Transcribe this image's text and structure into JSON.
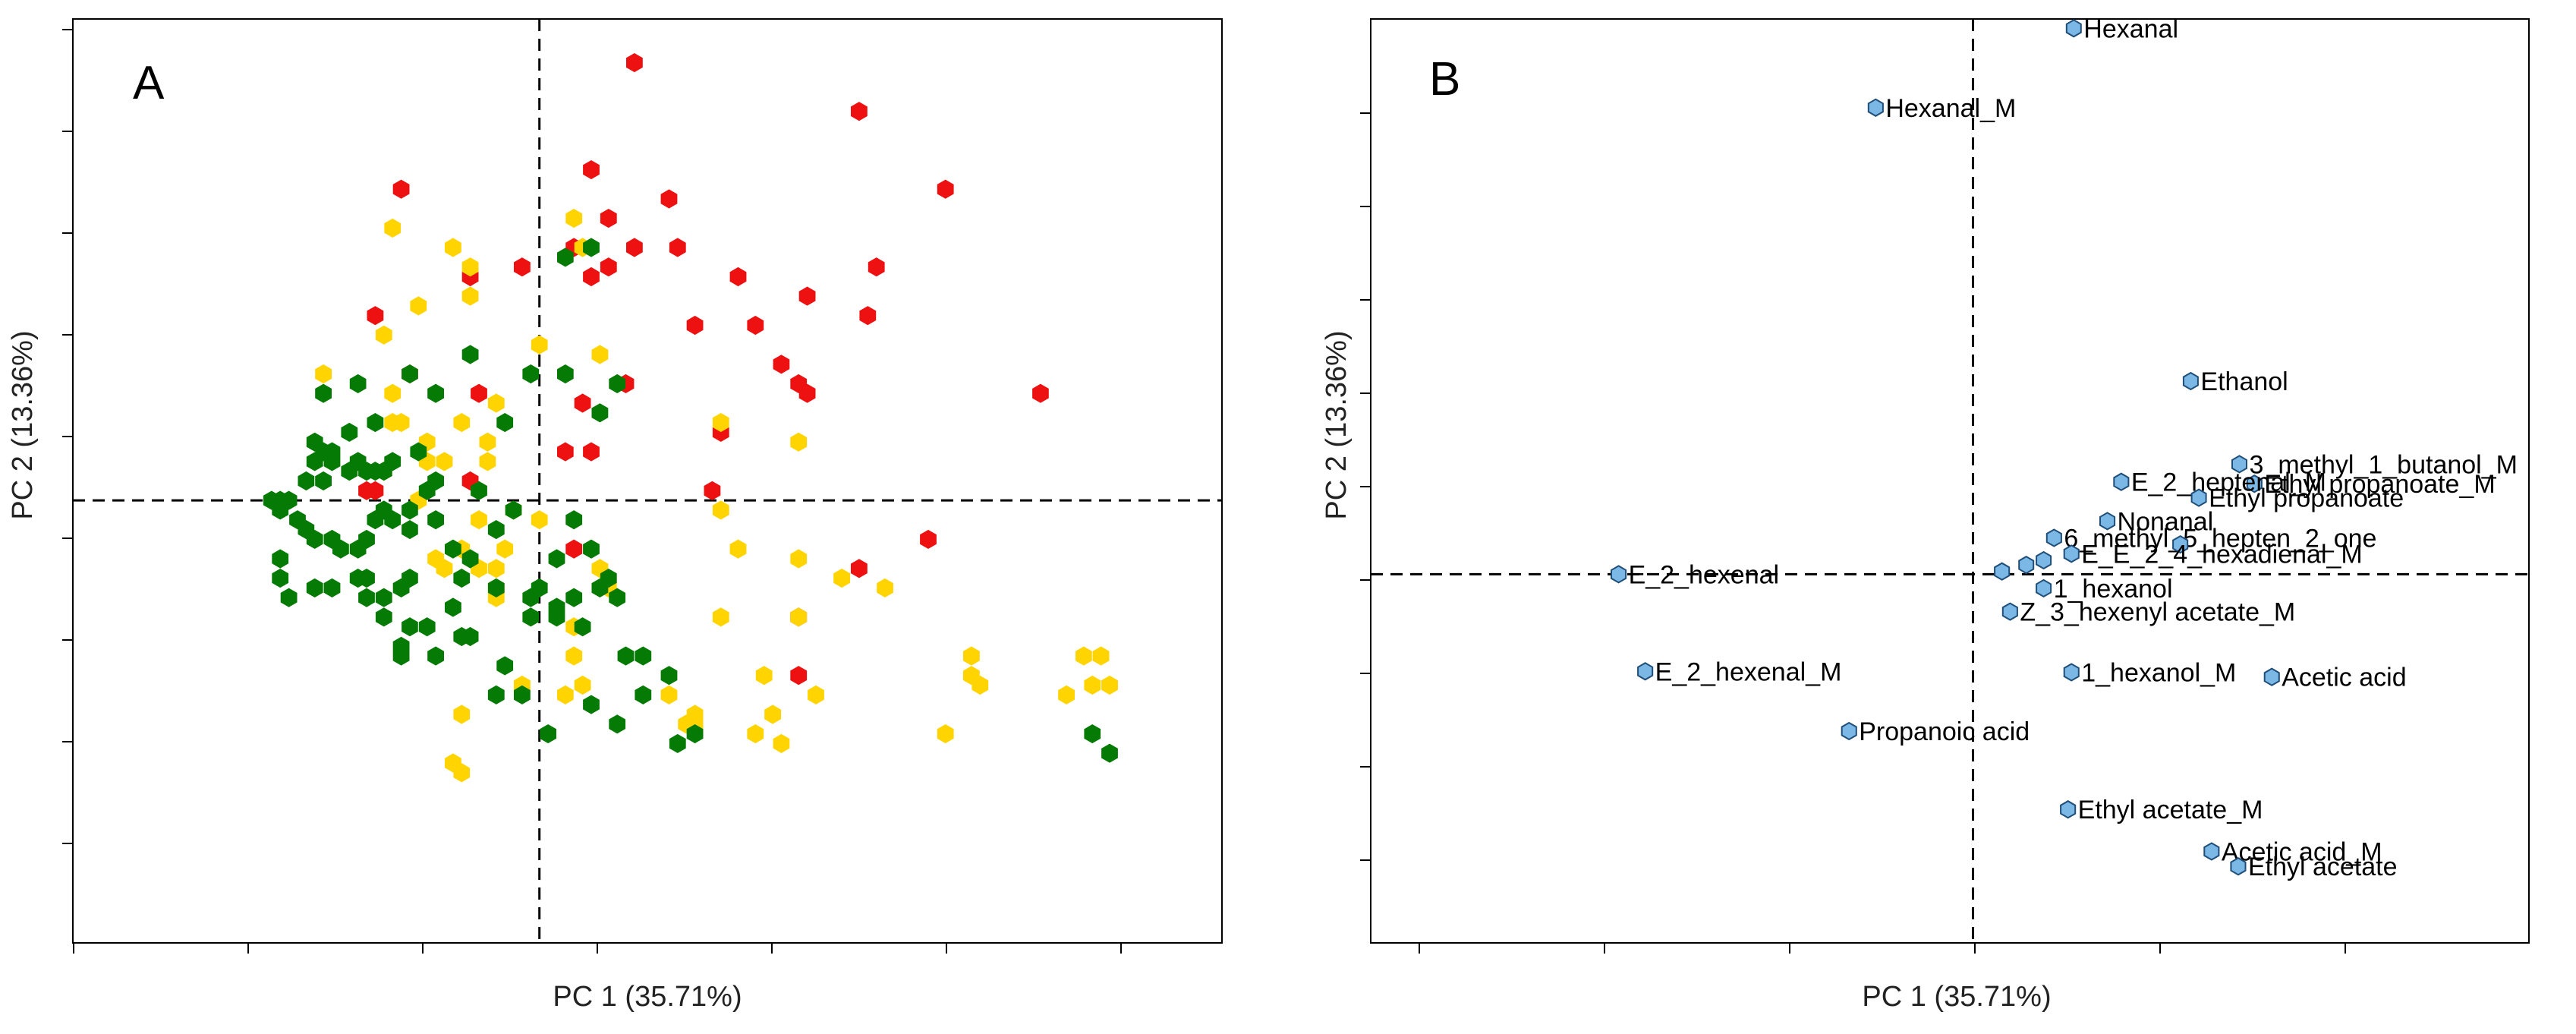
{
  "chart_data": [
    {
      "type": "scatter",
      "panel_label": "A",
      "xlabel": "PC 1 (35.71%)",
      "ylabel": "PC 2 (13.36%)",
      "xlim": [
        -5.4,
        7.9
      ],
      "ylim": [
        -4.55,
        4.95
      ],
      "zero_lines": "dashed",
      "colors": {
        "red": "#ee1111",
        "yellow": "#ffd400",
        "green": "#057a05"
      },
      "series": [
        {
          "color": "red",
          "values": [
            [
              1.1,
              4.5
            ],
            [
              3.7,
              4.0
            ],
            [
              4.7,
              3.2
            ],
            [
              0.6,
              3.4
            ],
            [
              1.5,
              3.1
            ],
            [
              -1.6,
              3.2
            ],
            [
              0.8,
              2.9
            ],
            [
              1.1,
              2.6
            ],
            [
              1.6,
              2.6
            ],
            [
              2.3,
              2.3
            ],
            [
              3.9,
              2.4
            ],
            [
              3.1,
              2.1
            ],
            [
              -0.2,
              2.4
            ],
            [
              0.4,
              2.6
            ],
            [
              0.6,
              2.3
            ],
            [
              0.8,
              2.4
            ],
            [
              -1.9,
              1.9
            ],
            [
              -0.8,
              2.3
            ],
            [
              1.8,
              1.8
            ],
            [
              2.5,
              1.8
            ],
            [
              2.8,
              1.4
            ],
            [
              3.0,
              1.2
            ],
            [
              3.8,
              1.9
            ],
            [
              -1.5,
              1.3
            ],
            [
              -0.7,
              1.1
            ],
            [
              0.5,
              1.0
            ],
            [
              1.0,
              1.2
            ],
            [
              3.1,
              1.1
            ],
            [
              5.8,
              1.1
            ],
            [
              2.1,
              0.7
            ],
            [
              2.0,
              0.1
            ],
            [
              0.3,
              0.5
            ],
            [
              0.6,
              0.5
            ],
            [
              -0.8,
              0.2
            ],
            [
              -2.0,
              0.1
            ],
            [
              -1.9,
              0.1
            ],
            [
              3.0,
              -1.2
            ],
            [
              4.5,
              -0.4
            ],
            [
              3.7,
              -0.7
            ],
            [
              0.4,
              -0.5
            ],
            [
              3.0,
              -1.8
            ]
          ]
        },
        {
          "color": "yellow",
          "values": [
            [
              -1.7,
              2.8
            ],
            [
              -1.0,
              2.6
            ],
            [
              0.4,
              2.9
            ],
            [
              0.5,
              2.6
            ],
            [
              -0.8,
              2.4
            ],
            [
              -1.4,
              2.0
            ],
            [
              -0.8,
              2.1
            ],
            [
              -1.8,
              1.7
            ],
            [
              -2.5,
              1.3
            ],
            [
              -1.7,
              1.1
            ],
            [
              -1.6,
              0.8
            ],
            [
              -1.7,
              0.8
            ],
            [
              -0.5,
              1.0
            ],
            [
              0.0,
              1.6
            ],
            [
              0.7,
              1.5
            ],
            [
              -0.6,
              0.6
            ],
            [
              -1.3,
              0.4
            ],
            [
              -1.1,
              0.4
            ],
            [
              -0.6,
              0.4
            ],
            [
              -1.3,
              0.6
            ],
            [
              -0.9,
              0.8
            ],
            [
              -1.8,
              0.3
            ],
            [
              2.1,
              0.8
            ],
            [
              3.0,
              0.6
            ],
            [
              -1.4,
              0.0
            ],
            [
              -0.7,
              -0.2
            ],
            [
              -0.3,
              -0.1
            ],
            [
              0.0,
              -0.2
            ],
            [
              -0.9,
              -0.5
            ],
            [
              -0.4,
              -0.5
            ],
            [
              -1.2,
              -0.6
            ],
            [
              -0.5,
              -0.9
            ],
            [
              -0.7,
              -0.7
            ],
            [
              0.7,
              -0.7
            ],
            [
              0.8,
              -0.9
            ],
            [
              -1.1,
              -0.7
            ],
            [
              -0.5,
              -1.0
            ],
            [
              2.1,
              -0.1
            ],
            [
              2.3,
              -0.5
            ],
            [
              3.0,
              -0.6
            ],
            [
              3.5,
              -0.8
            ],
            [
              4.0,
              -0.9
            ],
            [
              3.0,
              -1.2
            ],
            [
              2.1,
              -1.2
            ],
            [
              0.4,
              -1.3
            ],
            [
              0.4,
              -1.6
            ],
            [
              0.5,
              -1.9
            ],
            [
              -0.2,
              -1.9
            ],
            [
              0.3,
              -2.0
            ],
            [
              1.5,
              -2.0
            ],
            [
              1.8,
              -2.2
            ],
            [
              2.6,
              -1.8
            ],
            [
              2.7,
              -2.2
            ],
            [
              3.2,
              -2.0
            ],
            [
              4.7,
              -2.4
            ],
            [
              1.8,
              -2.3
            ],
            [
              1.7,
              -2.3
            ],
            [
              2.5,
              -2.4
            ],
            [
              2.8,
              -2.5
            ],
            [
              5.0,
              -1.6
            ],
            [
              5.0,
              -1.8
            ],
            [
              5.1,
              -1.9
            ],
            [
              6.3,
              -1.6
            ],
            [
              6.5,
              -1.6
            ],
            [
              6.4,
              -1.9
            ],
            [
              6.6,
              -1.9
            ],
            [
              6.1,
              -2.0
            ],
            [
              -1.0,
              -2.7
            ],
            [
              -0.9,
              -2.8
            ],
            [
              -0.9,
              -2.2
            ],
            [
              -0.5,
              -0.7
            ]
          ]
        },
        {
          "color": "green",
          "values": [
            [
              0.3,
              2.5
            ],
            [
              0.6,
              2.6
            ],
            [
              -0.8,
              1.5
            ],
            [
              -1.2,
              1.1
            ],
            [
              -1.5,
              1.3
            ],
            [
              -1.7,
              0.4
            ],
            [
              -1.8,
              0.3
            ],
            [
              -1.9,
              0.3
            ],
            [
              -2.0,
              0.3
            ],
            [
              -2.1,
              0.4
            ],
            [
              -2.2,
              0.3
            ],
            [
              -2.4,
              0.5
            ],
            [
              -2.4,
              0.4
            ],
            [
              -2.5,
              0.5
            ],
            [
              -2.6,
              0.6
            ],
            [
              -2.5,
              0.2
            ],
            [
              -2.7,
              0.2
            ],
            [
              -2.9,
              0.0
            ],
            [
              -3.0,
              0.0
            ],
            [
              -3.1,
              0.0
            ],
            [
              -3.0,
              -0.1
            ],
            [
              -2.8,
              -0.2
            ],
            [
              -2.7,
              -0.3
            ],
            [
              -2.6,
              -0.4
            ],
            [
              -2.4,
              -0.4
            ],
            [
              -2.3,
              -0.5
            ],
            [
              -2.1,
              -0.5
            ],
            [
              -2.0,
              -0.4
            ],
            [
              -1.9,
              -0.2
            ],
            [
              -1.7,
              -0.2
            ],
            [
              -1.5,
              -0.1
            ],
            [
              -1.3,
              0.1
            ],
            [
              -1.2,
              -0.2
            ],
            [
              -1.0,
              -0.5
            ],
            [
              -0.8,
              -0.6
            ],
            [
              -0.7,
              0.1
            ],
            [
              -0.5,
              -0.3
            ],
            [
              -0.3,
              -0.1
            ],
            [
              0.2,
              -0.6
            ],
            [
              0.4,
              -0.2
            ],
            [
              0.6,
              -0.5
            ],
            [
              0.7,
              -0.9
            ],
            [
              0.4,
              -1.0
            ],
            [
              0.5,
              -1.3
            ],
            [
              0.9,
              -1.0
            ],
            [
              1.0,
              -1.6
            ],
            [
              1.2,
              -1.6
            ],
            [
              0.6,
              -2.1
            ],
            [
              0.9,
              -2.3
            ],
            [
              -0.1,
              -1.0
            ],
            [
              -0.1,
              -1.2
            ],
            [
              -0.2,
              -2.0
            ],
            [
              -0.5,
              -2.0
            ],
            [
              -0.4,
              -1.7
            ],
            [
              -0.9,
              -1.4
            ],
            [
              -1.2,
              -1.6
            ],
            [
              -1.3,
              -1.3
            ],
            [
              -1.6,
              -1.5
            ],
            [
              -1.6,
              -1.6
            ],
            [
              -1.5,
              -1.3
            ],
            [
              -1.8,
              -1.2
            ],
            [
              -1.8,
              -1.0
            ],
            [
              -1.6,
              -0.9
            ],
            [
              -1.5,
              -0.8
            ],
            [
              -2.0,
              -1.0
            ],
            [
              -2.0,
              -0.8
            ],
            [
              -2.1,
              -0.8
            ],
            [
              -2.4,
              -0.9
            ],
            [
              -2.6,
              -0.9
            ],
            [
              -2.9,
              -1.0
            ],
            [
              -3.0,
              -0.8
            ],
            [
              -3.0,
              -0.6
            ],
            [
              -0.9,
              -0.8
            ],
            [
              -1.0,
              -1.1
            ],
            [
              -0.8,
              -1.4
            ],
            [
              -0.5,
              -0.9
            ],
            [
              0.0,
              -0.9
            ],
            [
              0.2,
              -1.1
            ],
            [
              0.2,
              -1.2
            ],
            [
              0.8,
              -0.8
            ],
            [
              1.2,
              -2.0
            ],
            [
              1.6,
              -2.5
            ],
            [
              1.8,
              -2.4
            ],
            [
              1.5,
              -1.8
            ],
            [
              0.1,
              -2.4
            ],
            [
              -1.9,
              0.8
            ],
            [
              -2.1,
              1.2
            ],
            [
              -2.5,
              1.1
            ],
            [
              -2.6,
              0.4
            ],
            [
              -2.2,
              0.7
            ],
            [
              -0.4,
              0.8
            ],
            [
              -0.1,
              1.3
            ],
            [
              0.3,
              1.3
            ],
            [
              0.7,
              0.9
            ],
            [
              0.9,
              1.2
            ],
            [
              -1.2,
              0.2
            ],
            [
              -1.5,
              -0.3
            ],
            [
              6.4,
              -2.4
            ],
            [
              6.6,
              -2.6
            ],
            [
              -1.8,
              -0.1
            ],
            [
              -1.4,
              0.5
            ]
          ]
        }
      ]
    },
    {
      "type": "scatter",
      "panel_label": "B",
      "xlabel": "PC 1 (35.71%)",
      "ylabel": "PC 2 (13.36%)",
      "xlim": [
        -0.52,
        0.48
      ],
      "ylim": [
        -0.395,
        0.595
      ],
      "zero_lines": "dashed",
      "point_color": "#7cb8e6",
      "points": [
        {
          "label": "Hexanal",
          "x": 0.087,
          "y": 0.585
        },
        {
          "label": "Hexanal_M",
          "x": -0.084,
          "y": 0.5
        },
        {
          "label": "Ethanol",
          "x": 0.188,
          "y": 0.207
        },
        {
          "label": "3_methyl_1_butanol_M",
          "x": 0.23,
          "y": 0.118
        },
        {
          "label": "Ethyl propanoate_M",
          "x": 0.243,
          "y": 0.097
        },
        {
          "label": "E_2_heptenal_M",
          "x": 0.128,
          "y": 0.099
        },
        {
          "label": "Ethyl propanoate",
          "x": 0.195,
          "y": 0.082
        },
        {
          "label": "Nonanal",
          "x": 0.116,
          "y": 0.057
        },
        {
          "label": "6_methyl_5_hepten_2_one",
          "x": 0.07,
          "y": 0.039
        },
        {
          "label": "",
          "x": 0.179,
          "y": 0.032
        },
        {
          "label": "E_E_2_4_hexadienal_M",
          "x": 0.085,
          "y": 0.022
        },
        {
          "label": "",
          "x": 0.061,
          "y": 0.015
        },
        {
          "label": "",
          "x": 0.046,
          "y": 0.01
        },
        {
          "label": "",
          "x": 0.025,
          "y": 0.003
        },
        {
          "label": "1_hexanol",
          "x": 0.061,
          "y": -0.015
        },
        {
          "label": "Z_3_hexenyl acetate_M",
          "x": 0.032,
          "y": -0.04
        },
        {
          "label": "E_2_hexenal",
          "x": -0.306,
          "y": 0.0
        },
        {
          "label": "E_2_hexenal_M",
          "x": -0.283,
          "y": -0.104
        },
        {
          "label": "1_hexanol_M",
          "x": 0.085,
          "y": -0.105
        },
        {
          "label": "Acetic acid",
          "x": 0.258,
          "y": -0.11
        },
        {
          "label": "Propanoic acid",
          "x": -0.107,
          "y": -0.168
        },
        {
          "label": "Ethyl acetate_M",
          "x": 0.082,
          "y": -0.252
        },
        {
          "label": "Acetic acid_M",
          "x": 0.206,
          "y": -0.297
        },
        {
          "label": "Ethyl acetate",
          "x": 0.229,
          "y": -0.313
        }
      ]
    }
  ]
}
